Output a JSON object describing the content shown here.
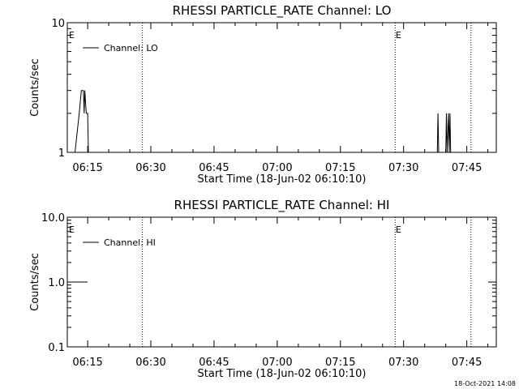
{
  "timestamp": "18-Oct-2021 14:08",
  "chart_data": [
    {
      "type": "line",
      "title": "RHESSI PARTICLE_RATE Channel: LO",
      "xlabel": "Start Time (18-Jun-02 06:10:10)",
      "ylabel": "Counts/sec",
      "y_scale": "log",
      "ylim": [
        1,
        10
      ],
      "y_ticks": [
        "1",
        "10"
      ],
      "xlim": [
        "06:10:10",
        "07:52:00"
      ],
      "x_ticks": [
        "06:15",
        "06:30",
        "06:45",
        "07:00",
        "07:15",
        "07:30",
        "07:45"
      ],
      "grid": false,
      "legend": {
        "placement": "top-left",
        "entries": [
          "Channel: LO"
        ]
      },
      "markers": [
        {
          "time": "06:28:00",
          "label": ""
        },
        {
          "time": "07:28:00",
          "label": "E"
        },
        {
          "time": "07:46:00",
          "label": ""
        }
      ],
      "series": [
        {
          "name": "Channel: LO",
          "segments": [
            [
              [
                "06:12:00",
                1
              ],
              [
                "06:13:00",
                2
              ],
              [
                "06:13:30",
                3
              ],
              [
                "06:14:00",
                3
              ],
              [
                "06:14:10",
                2
              ],
              [
                "06:14:20",
                3
              ],
              [
                "06:14:40",
                2
              ],
              [
                "06:15:00",
                2
              ],
              [
                "06:15:10",
                1
              ]
            ],
            [
              [
                "07:38:00",
                1
              ],
              [
                "07:38:10",
                2
              ],
              [
                "07:38:20",
                1
              ]
            ],
            [
              [
                "07:40:00",
                1
              ],
              [
                "07:40:10",
                2
              ],
              [
                "07:40:20",
                1
              ],
              [
                "07:40:40",
                2
              ],
              [
                "07:40:50",
                1
              ],
              [
                "07:41:00",
                2
              ],
              [
                "07:41:10",
                1
              ]
            ]
          ]
        }
      ],
      "annotations": [
        "E"
      ]
    },
    {
      "type": "line",
      "title": "RHESSI PARTICLE_RATE Channel: HI",
      "xlabel": "Start Time (18-Jun-02 06:10:10)",
      "ylabel": "Counts/sec",
      "y_scale": "log",
      "ylim": [
        0.1,
        10
      ],
      "y_ticks": [
        "0.1",
        "1.0",
        "10.0"
      ],
      "xlim": [
        "06:10:10",
        "07:52:00"
      ],
      "x_ticks": [
        "06:15",
        "06:30",
        "06:45",
        "07:00",
        "07:15",
        "07:30",
        "07:45"
      ],
      "grid": false,
      "legend": {
        "placement": "top-left",
        "entries": [
          "Channel: HI"
        ]
      },
      "markers": [
        {
          "time": "06:28:00",
          "label": ""
        },
        {
          "time": "07:28:00",
          "label": "E"
        },
        {
          "time": "07:46:00",
          "label": ""
        }
      ],
      "series": [
        {
          "name": "Channel: HI",
          "segments": [
            [
              [
                "06:10:10",
                1
              ],
              [
                "06:15:00",
                1
              ]
            ]
          ]
        }
      ],
      "annotations": [
        "E"
      ]
    }
  ]
}
